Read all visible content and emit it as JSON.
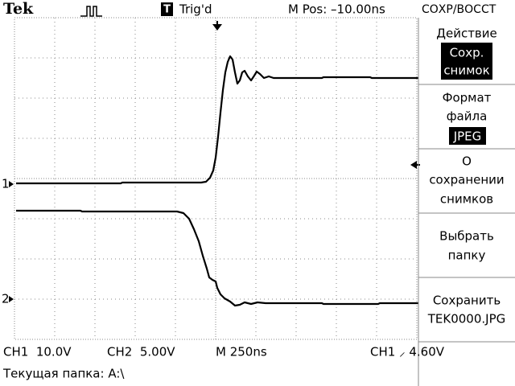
{
  "header": {
    "brand": "Tek",
    "trigger_badge": "T",
    "trigger_status": "Trig'd",
    "position": "M Pos: –10.00ns",
    "menu_title": "СОХР/ВОССТ"
  },
  "markers": {
    "ch1": "1",
    "ch2": "2"
  },
  "menu": [
    {
      "label": "Действие",
      "value": [
        "Сохр.",
        "снимок"
      ]
    },
    {
      "label": [
        "Формат",
        "файла"
      ],
      "value": "JPEG"
    },
    {
      "label": [
        "О",
        "сохранении",
        "снимков"
      ]
    },
    {
      "label": [
        "Выбрать",
        "папку"
      ]
    },
    {
      "label": [
        "Сохранить",
        "TEK0000.JPG"
      ]
    }
  ],
  "footer": {
    "ch1": "CH1  10.0V",
    "ch2": "CH2  5.00V",
    "timebase": "M 250ns",
    "trigger": "CH1 ⸝ 4.60V",
    "folder": "Текущая папка: A:\\"
  }
}
